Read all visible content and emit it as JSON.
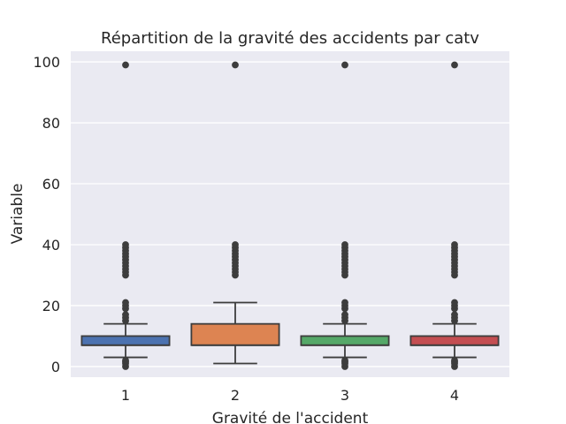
{
  "chart_data": {
    "type": "boxplot",
    "title": "Répartition de la gravité des accidents par catv",
    "xlabel": "Gravité de l'accident",
    "ylabel": "Variable",
    "ylim": [
      -3.5,
      103.5
    ],
    "yticks": [
      0,
      20,
      40,
      60,
      80,
      100
    ],
    "grid": true,
    "background": "#eaeaf2",
    "categories": [
      "1",
      "2",
      "3",
      "4"
    ],
    "boxes": [
      {
        "category": "1",
        "color": "#4c72b0",
        "whislo": 3,
        "q1": 7,
        "median": 7,
        "q3": 10,
        "whishi": 14,
        "fliers": [
          0,
          1,
          1.5,
          2,
          15,
          16,
          17,
          19,
          20,
          21,
          30,
          31,
          32,
          33,
          34,
          35,
          36,
          37,
          38,
          39,
          40,
          99
        ]
      },
      {
        "category": "2",
        "color": "#dd8452",
        "whislo": 1,
        "q1": 7,
        "median": 7,
        "q3": 14,
        "whishi": 21,
        "fliers": [
          30,
          31,
          32,
          33,
          34,
          35,
          36,
          37,
          38,
          39,
          40,
          99
        ]
      },
      {
        "category": "3",
        "color": "#55a868",
        "whislo": 3,
        "q1": 7,
        "median": 7,
        "q3": 10,
        "whishi": 14,
        "fliers": [
          0,
          1,
          1.5,
          2,
          15,
          16,
          17,
          19,
          20,
          21,
          30,
          31,
          32,
          33,
          34,
          35,
          36,
          37,
          38,
          39,
          40,
          99
        ]
      },
      {
        "category": "4",
        "color": "#c44e52",
        "whislo": 3,
        "q1": 7,
        "median": 7,
        "q3": 10,
        "whishi": 14,
        "fliers": [
          0,
          1,
          1.5,
          2,
          15,
          16,
          17,
          19,
          20,
          21,
          30,
          31,
          32,
          33,
          34,
          35,
          36,
          37,
          38,
          39,
          40,
          99
        ]
      }
    ]
  }
}
